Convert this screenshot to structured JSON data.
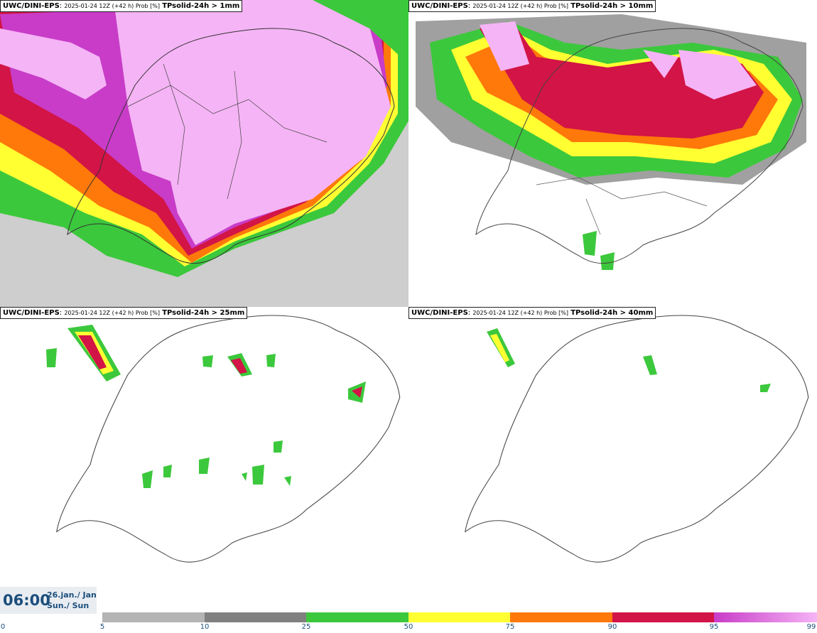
{
  "panels": [
    {
      "source": "UWC/DINI-EPS",
      "meta": "2025-01-24 12Z (+42 h) Prob [%]",
      "variable": "TPsolid-24h > 1mm"
    },
    {
      "source": "UWC/DINI-EPS",
      "meta": "2025-01-24 12Z (+42 h) Prob [%]",
      "variable": "TPsolid-24h > 10mm"
    },
    {
      "source": "UWC/DINI-EPS",
      "meta": "2025-01-24 12Z (+42 h) Prob [%]",
      "variable": "TPsolid-24h > 25mm"
    },
    {
      "source": "UWC/DINI-EPS",
      "meta": "2025-01-24 12Z (+42 h) Prob [%]",
      "variable": "TPsolid-24h > 40mm"
    }
  ],
  "timebox": {
    "time": "06:00",
    "date_line1": "26.jan./ Jan",
    "date_line2": "Sun./ Sun"
  },
  "colorbar": {
    "ticks": [
      "0",
      "5",
      "10",
      "25",
      "50",
      "75",
      "90",
      "95",
      "99"
    ],
    "colors": {
      "c5": "#b4b4b4",
      "c10": "#808080",
      "c25": "#3cc83c",
      "c50": "#ffff32",
      "c75": "#ff780a",
      "c90": "#d21446",
      "c95": "#c83cc8",
      "c99": "#f5b4f5"
    }
  }
}
